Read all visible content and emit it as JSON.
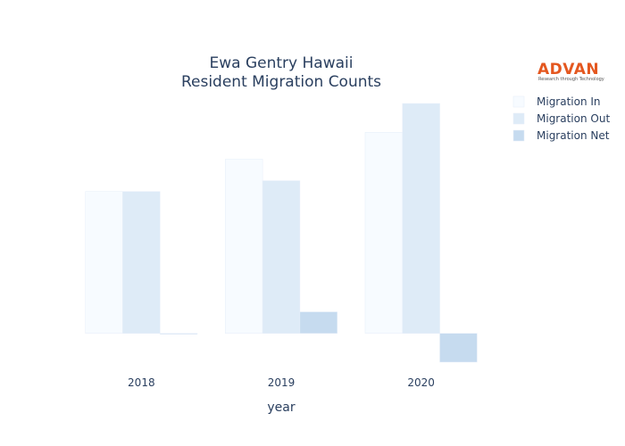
{
  "chart_data": {
    "type": "bar",
    "title_lines": [
      "Ewa Gentry Hawaii",
      "Resident Migration Counts"
    ],
    "xlabel": "year",
    "ylabel": "",
    "categories": [
      "2018",
      "2019",
      "2020"
    ],
    "series": [
      {
        "name": "Migration In",
        "values": [
          158,
          194,
          224
        ],
        "color": "#f7fbff"
      },
      {
        "name": "Migration Out",
        "values": [
          158,
          170,
          256
        ],
        "color": "#deebf7"
      },
      {
        "name": "Migration Net",
        "values": [
          0,
          24,
          -32
        ],
        "color": "#c6dbef"
      }
    ],
    "ylim": [
      -36,
      262
    ],
    "grid": false,
    "legend_position": "top-right"
  },
  "logo": {
    "name": "ADVAN",
    "tagline": "Research through Technology"
  }
}
